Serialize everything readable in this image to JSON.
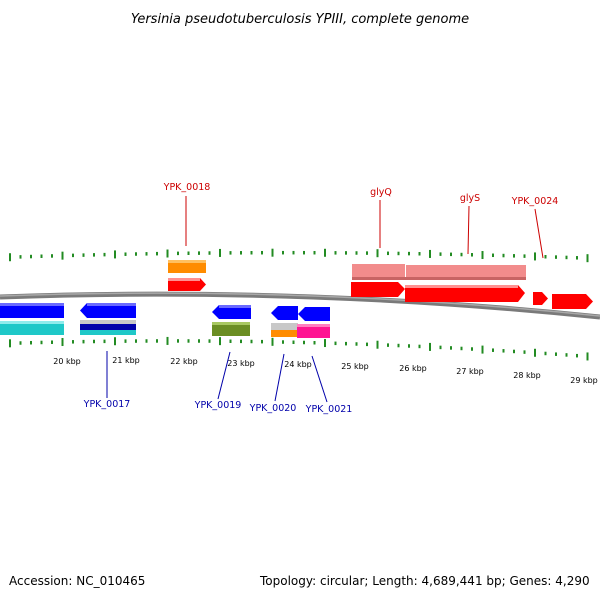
{
  "title": "Yersinia pseudotuberculosis YPIII, complete genome",
  "accession": "Accession: NC_010465",
  "topology": "Topology: circular; Length: 4,689,441 bp; Genes: 4,290",
  "scale_labels": [
    "20 kbp",
    "21 kbp",
    "22 kbp",
    "23 kbp",
    "24 kbp",
    "25 kbp",
    "26 kbp",
    "27 kbp",
    "28 kbp",
    "29 kbp"
  ],
  "gene_labels_top": [
    "YPK_0018",
    "glyQ",
    "glyS",
    "YPK_0024"
  ],
  "gene_labels_bottom": [
    "YPK_0017",
    "YPK_0019",
    "YPK_0020",
    "YPK_0021"
  ],
  "colors": {
    "title": "#000000",
    "top_label": "#cc0000",
    "bottom_label": "#0000aa",
    "tick": "#228b22",
    "backbone": "#7a7a7a",
    "forward_gene": "#ff0000",
    "forward_feature": "#f28c8c",
    "orange_feature": "#ff8c00",
    "reverse_gene": "#0000ff",
    "cyan_feature": "#1fc8c8",
    "olive_feature": "#6b8e23",
    "magenta_feature": "#ff1493",
    "gray_feature": "#c8c8c8"
  }
}
